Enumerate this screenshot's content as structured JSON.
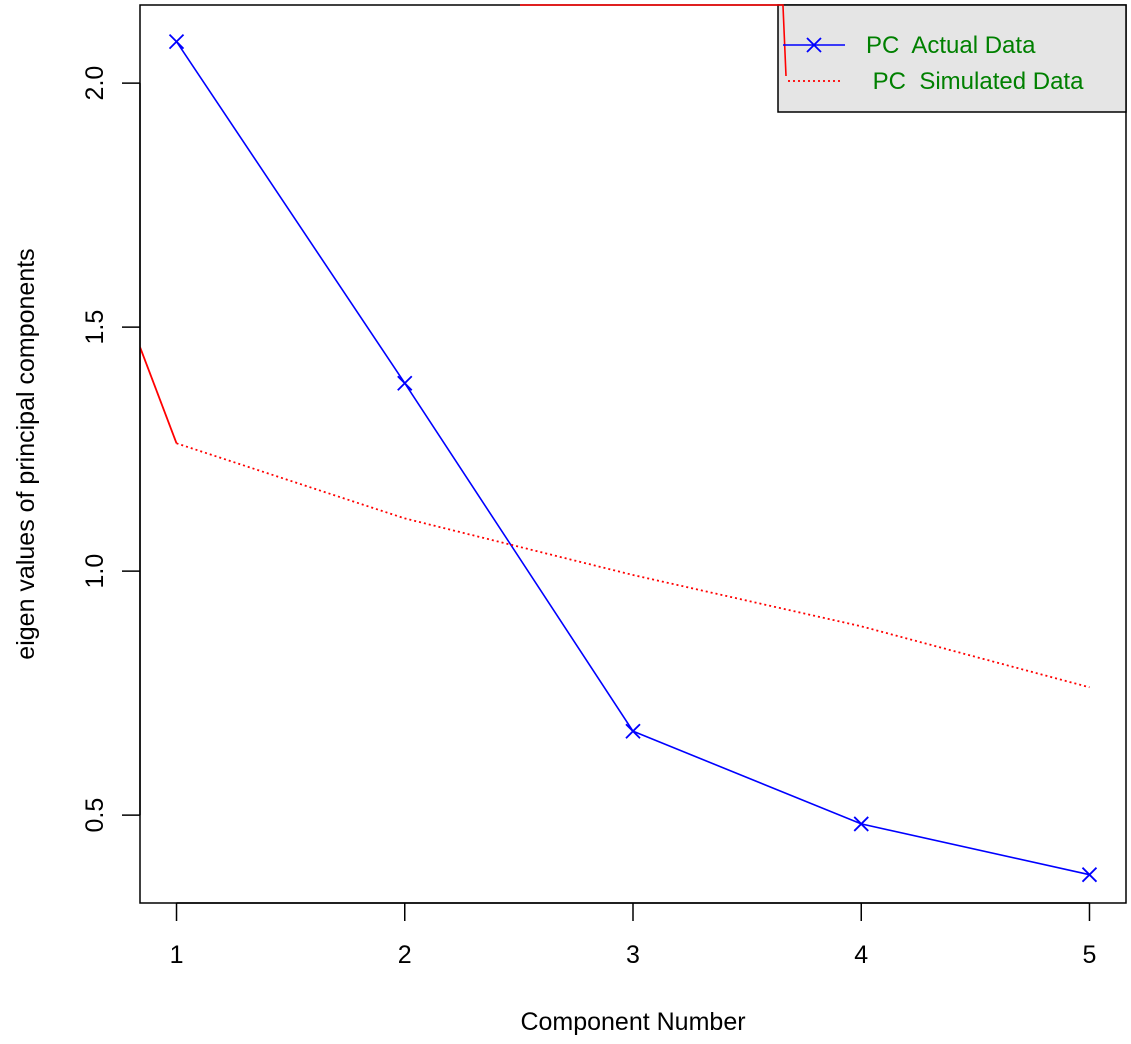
{
  "chart_data": {
    "type": "line",
    "title": "",
    "xlabel": "Component Number",
    "ylabel": "eigen values of principal components",
    "x": [
      1,
      2,
      3,
      4,
      5
    ],
    "x_ticks": [
      "1",
      "2",
      "3",
      "4",
      "5"
    ],
    "y_ticks": [
      "0.5",
      "1.0",
      "1.5",
      "2.0"
    ],
    "xlim": [
      0.84,
      5.16
    ],
    "ylim": [
      0.32,
      2.16
    ],
    "grid": false,
    "legend_position": "top-right",
    "series": [
      {
        "name": "PC  Actual Data",
        "values": [
          2.085,
          1.385,
          0.672,
          0.482,
          0.378
        ],
        "color": "#0000ff",
        "line_style": "solid",
        "marker": "x"
      },
      {
        "name": " PC  Simulated Data",
        "values": [
          1.262,
          1.108,
          0.992,
          0.887,
          0.762
        ],
        "color": "#ff0000",
        "line_style": "dotted",
        "marker": "none"
      }
    ],
    "legend": {
      "background": "#e5e5e5",
      "text_color": "#008000"
    }
  }
}
